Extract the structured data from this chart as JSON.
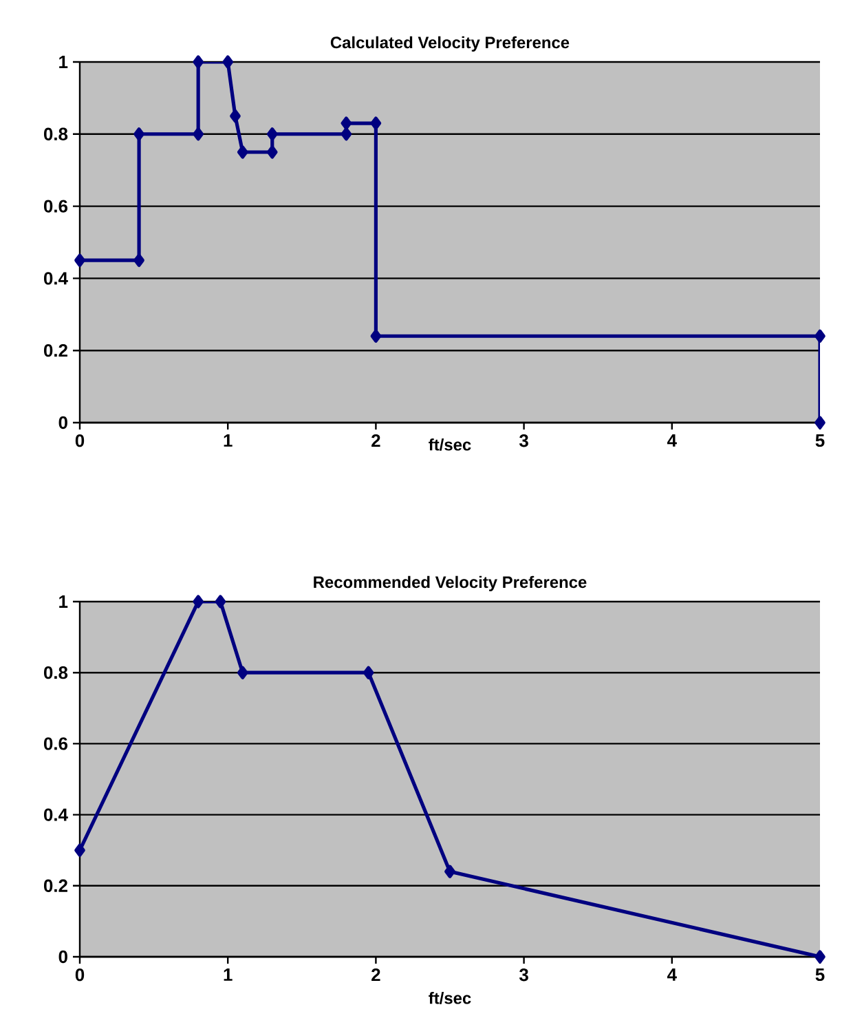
{
  "chart_data": [
    {
      "type": "line",
      "title": "Calculated Velocity Preference",
      "xlabel": "ft/sec",
      "color": "#000080",
      "marker": "diamond",
      "line_style": "solid",
      "grid": "y",
      "x": [
        0,
        0.4,
        0.4,
        0.8,
        0.8,
        1,
        1.05,
        1.1,
        1.3,
        1.3,
        1.8,
        1.8,
        2,
        2,
        5,
        5
      ],
      "values": [
        0.45,
        0.45,
        0.8,
        0.8,
        1,
        1,
        0.85,
        0.75,
        0.75,
        0.8,
        0.8,
        0.83,
        0.83,
        0.24,
        0.24,
        0
      ],
      "xlim": [
        0,
        5
      ],
      "ylim": [
        0,
        1
      ],
      "xticks": [
        0,
        1,
        2,
        3,
        4,
        5
      ],
      "yticks": [
        0,
        0.2,
        0.4,
        0.6,
        0.8,
        1
      ]
    },
    {
      "type": "line",
      "title": "Recommended Velocity Preference",
      "xlabel": "ft/sec",
      "color": "#000080",
      "marker": "diamond",
      "line_style": "solid",
      "grid": "y",
      "x": [
        0,
        0.8,
        0.95,
        1.1,
        1.95,
        2.5,
        5
      ],
      "values": [
        0.3,
        1,
        1,
        0.8,
        0.8,
        0.24,
        0
      ],
      "xlim": [
        0,
        5
      ],
      "ylim": [
        0,
        1
      ],
      "xticks": [
        0,
        1,
        2,
        3,
        4,
        5
      ],
      "yticks": [
        0,
        0.2,
        0.4,
        0.6,
        0.8,
        1
      ]
    }
  ]
}
